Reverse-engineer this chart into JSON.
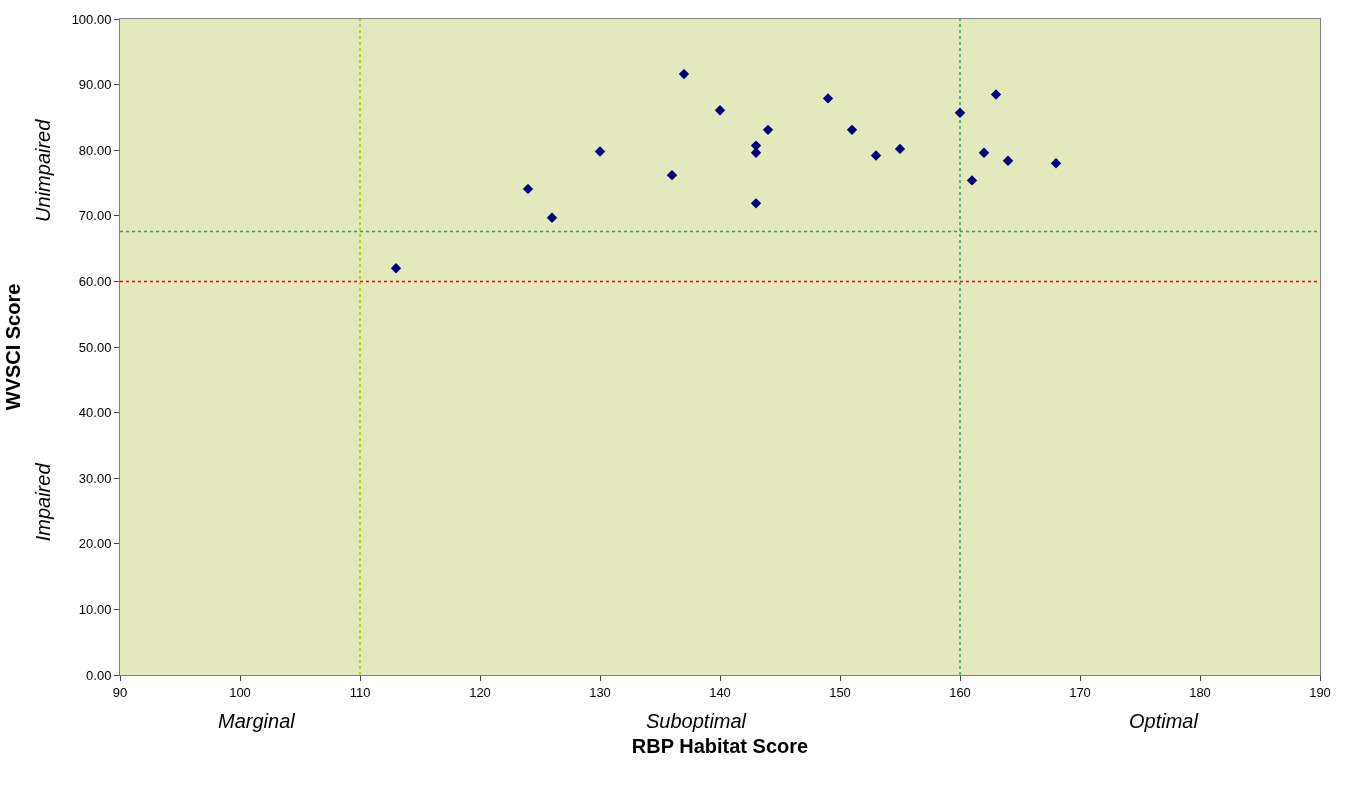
{
  "chart_data": {
    "type": "scatter",
    "xlabel": "RBP Habitat Score",
    "ylabel": "WVSCI Score",
    "x": [
      113,
      124,
      126,
      130,
      136,
      137,
      140,
      143,
      143,
      143,
      144,
      149,
      151,
      153,
      155,
      160,
      161,
      162,
      163,
      164,
      168
    ],
    "series": [
      {
        "color": "#000080",
        "values": [
          62.0,
          74.1,
          69.7,
          79.8,
          76.2,
          91.6,
          86.1,
          80.7,
          79.6,
          71.9,
          83.1,
          87.9,
          83.1,
          79.2,
          80.2,
          85.7,
          75.4,
          79.6,
          88.5,
          78.4,
          78.0
        ]
      }
    ],
    "marker": "diamond",
    "grid": false,
    "xlim": [
      90,
      190
    ],
    "xticks": [
      90,
      100,
      110,
      120,
      130,
      140,
      150,
      160,
      170,
      180,
      190
    ],
    "ylim": [
      0,
      100
    ],
    "yticks": [
      {
        "value": 0,
        "label": "0.00"
      },
      {
        "value": 10,
        "label": "10.00"
      },
      {
        "value": 20,
        "label": "20.00"
      },
      {
        "value": 30,
        "label": "30.00"
      },
      {
        "value": 40,
        "label": "40.00"
      },
      {
        "value": 50,
        "label": "50.00"
      },
      {
        "value": 60,
        "label": "60.00"
      },
      {
        "value": 70,
        "label": "70.00"
      },
      {
        "value": 80,
        "label": "80.00"
      },
      {
        "value": 90,
        "label": "90.00"
      },
      {
        "value": 100,
        "label": "100.00"
      }
    ],
    "ref_lines": [
      {
        "axis": "x",
        "value": 110,
        "color": "#99cc00",
        "line_style": "dotted"
      },
      {
        "axis": "x",
        "value": 160,
        "color": "#339966",
        "line_style": "dotted"
      },
      {
        "axis": "y",
        "value": 60,
        "color": "#ff0000",
        "line_style": "dotted"
      },
      {
        "axis": "y",
        "value": 67.6,
        "color": "#339966",
        "line_style": "dotted"
      }
    ],
    "annotations": [
      "Unimpaired",
      "Impaired",
      "Marginal",
      "Suboptimal",
      "Optimal"
    ]
  }
}
